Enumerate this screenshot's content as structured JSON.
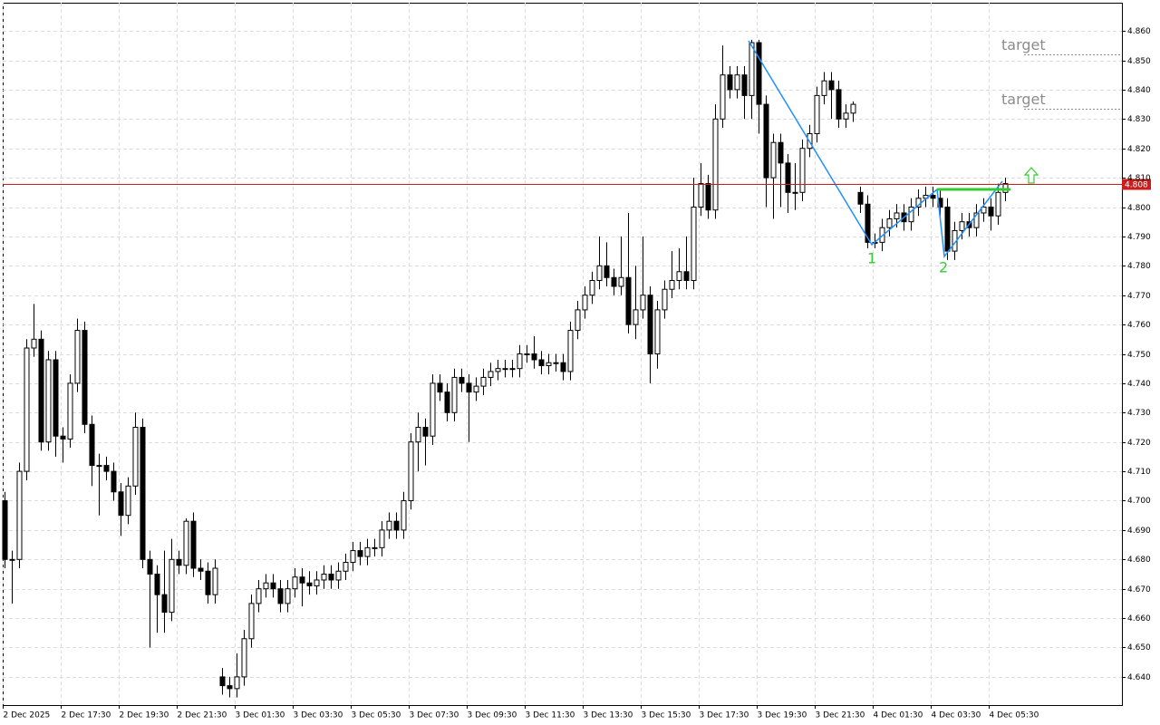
{
  "chart_data": {
    "type": "candlestick",
    "categories": [
      "2 Dec 2025",
      null,
      null,
      null,
      null,
      null,
      null,
      null,
      "2 Dec 17:30",
      null,
      null,
      null,
      null,
      null,
      null,
      null,
      "2 Dec 19:30",
      null,
      null,
      null,
      null,
      null,
      null,
      null,
      "2 Dec 21:30",
      null,
      null,
      null,
      null,
      null,
      null,
      null,
      "3 Dec 01:30",
      null,
      null,
      null,
      null,
      null,
      null,
      null,
      "3 Dec 03:30",
      null,
      null,
      null,
      null,
      null,
      null,
      null,
      "3 Dec 05:30",
      null,
      null,
      null,
      null,
      null,
      null,
      null,
      "3 Dec 07:30",
      null,
      null,
      null,
      null,
      null,
      null,
      null,
      "3 Dec 09:30",
      null,
      null,
      null,
      null,
      null,
      null,
      null,
      "3 Dec 11:30",
      null,
      null,
      null,
      null,
      null,
      null,
      null,
      "3 Dec 13:30",
      null,
      null,
      null,
      null,
      null,
      null,
      null,
      "3 Dec 15:30",
      null,
      null,
      null,
      null,
      null,
      null,
      null,
      "3 Dec 17:30",
      null,
      null,
      null,
      null,
      null,
      null,
      null,
      "3 Dec 19:30",
      null,
      null,
      null,
      null,
      null,
      null,
      null,
      "3 Dec 21:30",
      null,
      null,
      null,
      null,
      null,
      null,
      null,
      "4 Dec 01:30",
      null,
      null,
      null,
      null,
      null,
      null,
      null,
      "4 Dec 03:30",
      null,
      null,
      null,
      null,
      null,
      null,
      null,
      "4 Dec 05:30",
      null,
      null
    ],
    "open": [
      4.7,
      4.68,
      4.68,
      4.71,
      4.752,
      4.755,
      4.72,
      4.748,
      4.722,
      4.721,
      4.74,
      4.758,
      4.726,
      4.712,
      4.712,
      4.71,
      4.703,
      4.695,
      4.705,
      4.725,
      4.68,
      4.675,
      4.668,
      4.662,
      4.68,
      4.678,
      4.693,
      4.677,
      4.676,
      4.668,
      4.64,
      4.637,
      4.636,
      4.64,
      4.653,
      4.665,
      4.67,
      4.672,
      4.67,
      4.665,
      4.67,
      4.674,
      4.672,
      4.671,
      4.673,
      4.675,
      4.673,
      4.676,
      4.679,
      4.683,
      4.681,
      4.684,
      4.684,
      4.69,
      4.693,
      4.69,
      4.7,
      4.72,
      4.725,
      4.722,
      4.74,
      4.737,
      4.73,
      4.742,
      4.74,
      4.737,
      4.739,
      4.742,
      4.744,
      4.745,
      4.745,
      4.745,
      4.75,
      4.75,
      4.748,
      4.746,
      4.747,
      4.747,
      4.744,
      4.758,
      4.765,
      4.77,
      4.775,
      4.78,
      4.776,
      4.773,
      4.776,
      4.76,
      4.765,
      4.77,
      4.75,
      4.765,
      4.772,
      4.775,
      4.778,
      4.775,
      4.8,
      4.808,
      4.799,
      4.83,
      4.845,
      4.84,
      4.845,
      4.838,
      4.856,
      4.835,
      4.81,
      4.822,
      4.815,
      4.805,
      4.805,
      4.82,
      4.825,
      4.838,
      4.843,
      4.84,
      4.83,
      4.832,
      4.805,
      4.801,
      4.788,
      4.788,
      4.793,
      4.796,
      4.798,
      4.795,
      4.8,
      4.803,
      4.804,
      4.803,
      4.8,
      4.785,
      4.792,
      4.795,
      4.793,
      4.798,
      4.8,
      4.797,
      4.805
    ],
    "high": [
      4.703,
      4.683,
      4.713,
      4.755,
      4.767,
      4.758,
      4.751,
      4.751,
      4.725,
      4.743,
      4.762,
      4.761,
      4.729,
      4.716,
      4.715,
      4.713,
      4.706,
      4.708,
      4.73,
      4.728,
      4.683,
      4.678,
      4.683,
      4.687,
      4.683,
      4.694,
      4.696,
      4.68,
      4.679,
      4.68,
      4.643,
      4.64,
      4.648,
      4.656,
      4.668,
      4.673,
      4.675,
      4.675,
      4.673,
      4.673,
      4.677,
      4.677,
      4.676,
      4.676,
      4.678,
      4.678,
      4.679,
      4.682,
      4.686,
      4.686,
      4.687,
      4.687,
      4.693,
      4.696,
      4.696,
      4.703,
      4.723,
      4.73,
      4.728,
      4.743,
      4.743,
      4.74,
      4.745,
      4.745,
      4.743,
      4.742,
      4.745,
      4.747,
      4.748,
      4.748,
      4.748,
      4.753,
      4.753,
      4.756,
      4.751,
      4.75,
      4.75,
      4.75,
      4.761,
      4.768,
      4.773,
      4.778,
      4.79,
      4.788,
      4.779,
      4.79,
      4.798,
      4.78,
      4.79,
      4.773,
      4.768,
      4.775,
      4.785,
      4.786,
      4.79,
      4.81,
      4.815,
      4.811,
      4.835,
      4.855,
      4.848,
      4.848,
      4.848,
      4.857,
      4.857,
      4.838,
      4.825,
      4.825,
      4.818,
      4.815,
      4.823,
      4.828,
      4.841,
      4.846,
      4.846,
      4.843,
      4.835,
      4.836,
      4.807,
      4.804,
      4.791,
      4.796,
      4.799,
      4.801,
      4.801,
      4.803,
      4.806,
      4.807,
      4.807,
      4.806,
      4.803,
      4.795,
      4.798,
      4.798,
      4.801,
      4.803,
      4.803,
      4.808,
      4.81
    ],
    "low": [
      4.677,
      4.665,
      4.677,
      4.707,
      4.749,
      4.717,
      4.717,
      4.715,
      4.713,
      4.718,
      4.737,
      4.723,
      4.705,
      4.695,
      4.707,
      4.7,
      4.688,
      4.692,
      4.702,
      4.677,
      4.65,
      4.655,
      4.655,
      4.659,
      4.675,
      4.675,
      4.674,
      4.673,
      4.665,
      4.665,
      4.634,
      4.633,
      4.633,
      4.637,
      4.65,
      4.662,
      4.667,
      4.667,
      4.662,
      4.662,
      4.667,
      4.664,
      4.668,
      4.668,
      4.67,
      4.67,
      4.67,
      4.673,
      4.676,
      4.678,
      4.678,
      4.681,
      4.681,
      4.687,
      4.687,
      4.687,
      4.697,
      4.71,
      4.712,
      4.719,
      4.734,
      4.727,
      4.727,
      4.737,
      4.72,
      4.734,
      4.736,
      4.739,
      4.741,
      4.742,
      4.742,
      4.742,
      4.747,
      4.745,
      4.743,
      4.743,
      4.744,
      4.741,
      4.741,
      4.755,
      4.762,
      4.767,
      4.772,
      4.773,
      4.77,
      4.77,
      4.757,
      4.755,
      4.762,
      4.74,
      4.745,
      4.762,
      4.769,
      4.772,
      4.772,
      4.772,
      4.797,
      4.796,
      4.796,
      4.827,
      4.837,
      4.837,
      4.83,
      4.83,
      4.825,
      4.8,
      4.796,
      4.8,
      4.798,
      4.799,
      4.802,
      4.817,
      4.822,
      4.835,
      4.83,
      4.827,
      4.827,
      4.829,
      4.798,
      4.786,
      4.786,
      4.785,
      4.79,
      4.793,
      4.792,
      4.792,
      4.797,
      4.8,
      4.8,
      4.797,
      4.782,
      4.782,
      4.789,
      4.79,
      4.79,
      4.795,
      4.792,
      4.794,
      4.802
    ],
    "close": [
      4.68,
      4.68,
      4.71,
      4.752,
      4.755,
      4.72,
      4.748,
      4.722,
      4.721,
      4.74,
      4.758,
      4.726,
      4.712,
      4.712,
      4.71,
      4.703,
      4.695,
      4.705,
      4.725,
      4.68,
      4.675,
      4.668,
      4.662,
      4.68,
      4.678,
      4.693,
      4.677,
      4.676,
      4.668,
      4.677,
      4.637,
      4.636,
      4.64,
      4.653,
      4.665,
      4.67,
      4.672,
      4.67,
      4.665,
      4.67,
      4.674,
      4.672,
      4.671,
      4.673,
      4.675,
      4.673,
      4.676,
      4.679,
      4.683,
      4.681,
      4.684,
      4.684,
      4.69,
      4.693,
      4.69,
      4.7,
      4.72,
      4.725,
      4.722,
      4.74,
      4.737,
      4.73,
      4.742,
      4.74,
      4.737,
      4.739,
      4.742,
      4.744,
      4.745,
      4.745,
      4.745,
      4.75,
      4.75,
      4.748,
      4.746,
      4.747,
      4.747,
      4.744,
      4.758,
      4.765,
      4.77,
      4.775,
      4.78,
      4.776,
      4.773,
      4.776,
      4.76,
      4.765,
      4.77,
      4.75,
      4.765,
      4.772,
      4.775,
      4.778,
      4.775,
      4.8,
      4.808,
      4.799,
      4.83,
      4.845,
      4.84,
      4.845,
      4.838,
      4.856,
      4.835,
      4.81,
      4.822,
      4.815,
      4.805,
      4.805,
      4.82,
      4.825,
      4.838,
      4.843,
      4.84,
      4.83,
      4.832,
      4.835,
      4.801,
      4.788,
      4.788,
      4.793,
      4.796,
      4.798,
      4.795,
      4.8,
      4.803,
      4.804,
      4.803,
      4.8,
      4.785,
      4.792,
      4.795,
      4.793,
      4.798,
      4.8,
      4.797,
      4.805,
      4.808
    ],
    "up_color": "#ffffff",
    "down_color": "#000000",
    "ylim": [
      4.6304,
      4.8696
    ],
    "yticks": [
      {
        "value": 4.64,
        "label": "4.640"
      },
      {
        "value": 4.65,
        "label": "4.650"
      },
      {
        "value": 4.66,
        "label": "4.660"
      },
      {
        "value": 4.67,
        "label": "4.670"
      },
      {
        "value": 4.68,
        "label": "4.680"
      },
      {
        "value": 4.69,
        "label": "4.690"
      },
      {
        "value": 4.7,
        "label": "4.700"
      },
      {
        "value": 4.71,
        "label": "4.710"
      },
      {
        "value": 4.72,
        "label": "4.720"
      },
      {
        "value": 4.73,
        "label": "4.730"
      },
      {
        "value": 4.74,
        "label": "4.740"
      },
      {
        "value": 4.75,
        "label": "4.750"
      },
      {
        "value": 4.76,
        "label": "4.760"
      },
      {
        "value": 4.77,
        "label": "4.770"
      },
      {
        "value": 4.78,
        "label": "4.780"
      },
      {
        "value": 4.79,
        "label": "4.790"
      },
      {
        "value": 4.8,
        "label": "4.800"
      },
      {
        "value": 4.81,
        "label": "4.810"
      },
      {
        "value": 4.82,
        "label": "4.820"
      },
      {
        "value": 4.83,
        "label": "4.830"
      },
      {
        "value": 4.84,
        "label": "4.840"
      },
      {
        "value": 4.85,
        "label": "4.850"
      },
      {
        "value": 4.86,
        "label": "4.860"
      }
    ],
    "grid": true,
    "current_price": 4.808,
    "current_price_color": "#c81e1e",
    "targets": [
      {
        "label": "target",
        "price": 4.852
      },
      {
        "label": "target",
        "price": 4.8335
      }
    ],
    "points": [
      "1",
      "2"
    ]
  }
}
